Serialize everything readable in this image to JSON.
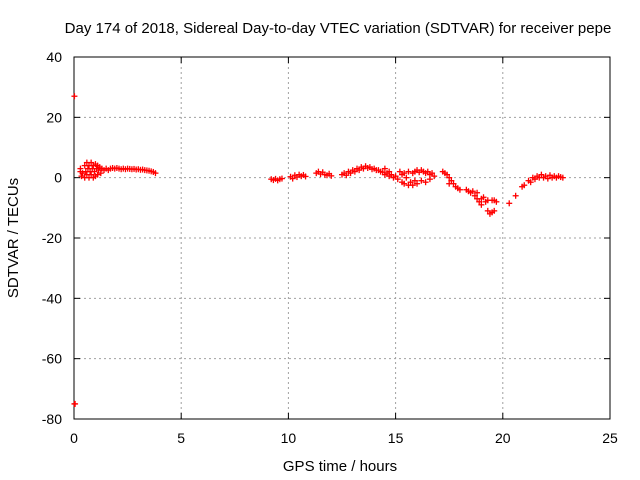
{
  "chart_data": {
    "type": "scatter",
    "title": "Day 174 of 2018, Sidereal Day-to-day VTEC variation (SDTVAR) for receiver pepe",
    "xlabel": "GPS time / hours",
    "ylabel": "SDTVAR / TECUs",
    "xlim": [
      0,
      25
    ],
    "ylim": [
      -80,
      40
    ],
    "xticks": [
      0,
      5,
      10,
      15,
      20,
      25
    ],
    "yticks": [
      -80,
      -60,
      -40,
      -20,
      0,
      20,
      40
    ],
    "grid": true,
    "marker_color": "#ff0000",
    "series": [
      {
        "name": "SDTVAR",
        "points": [
          [
            0.02,
            27
          ],
          [
            0.02,
            -75
          ],
          [
            0.05,
            -75
          ],
          [
            0.3,
            2
          ],
          [
            0.3,
            3
          ],
          [
            0.35,
            0.5
          ],
          [
            0.4,
            1.5
          ],
          [
            0.5,
            0
          ],
          [
            0.5,
            4
          ],
          [
            0.55,
            2
          ],
          [
            0.6,
            5
          ],
          [
            0.6,
            1
          ],
          [
            0.65,
            3
          ],
          [
            0.7,
            0
          ],
          [
            0.7,
            4
          ],
          [
            0.75,
            2
          ],
          [
            0.8,
            5
          ],
          [
            0.8,
            1
          ],
          [
            0.85,
            3
          ],
          [
            0.9,
            0
          ],
          [
            0.9,
            4
          ],
          [
            0.95,
            2
          ],
          [
            1.0,
            4.5
          ],
          [
            1.0,
            0.5
          ],
          [
            1.05,
            3
          ],
          [
            1.1,
            1
          ],
          [
            1.1,
            4
          ],
          [
            1.15,
            2.5
          ],
          [
            1.2,
            3.5
          ],
          [
            1.25,
            1.5
          ],
          [
            1.3,
            3
          ],
          [
            1.4,
            2.5
          ],
          [
            1.5,
            3
          ],
          [
            1.6,
            2.5
          ],
          [
            1.7,
            3
          ],
          [
            1.8,
            3.2
          ],
          [
            1.9,
            3
          ],
          [
            2.0,
            3.2
          ],
          [
            2.1,
            3
          ],
          [
            2.2,
            2.8
          ],
          [
            2.3,
            3
          ],
          [
            2.4,
            2.8
          ],
          [
            2.5,
            3
          ],
          [
            2.6,
            2.9
          ],
          [
            2.7,
            2.8
          ],
          [
            2.8,
            2.9
          ],
          [
            2.9,
            2.7
          ],
          [
            3.0,
            2.8
          ],
          [
            3.1,
            2.6
          ],
          [
            3.2,
            2.7
          ],
          [
            3.3,
            2.5
          ],
          [
            3.4,
            2.4
          ],
          [
            3.5,
            2.3
          ],
          [
            3.6,
            2.1
          ],
          [
            3.7,
            1.9
          ],
          [
            3.8,
            1.5
          ],
          [
            9.2,
            -0.5
          ],
          [
            9.3,
            -0.8
          ],
          [
            9.4,
            -0.4
          ],
          [
            9.5,
            -0.9
          ],
          [
            9.6,
            -0.5
          ],
          [
            9.7,
            -0.3
          ],
          [
            10.1,
            0.3
          ],
          [
            10.2,
            -0.3
          ],
          [
            10.3,
            0.8
          ],
          [
            10.4,
            0.2
          ],
          [
            10.5,
            1
          ],
          [
            10.6,
            0.5
          ],
          [
            10.7,
            0.9
          ],
          [
            10.8,
            0.4
          ],
          [
            11.3,
            1.5
          ],
          [
            11.4,
            2
          ],
          [
            11.5,
            1.2
          ],
          [
            11.6,
            1.8
          ],
          [
            11.7,
            1
          ],
          [
            11.8,
            0.8
          ],
          [
            11.9,
            1.3
          ],
          [
            12.0,
            0.6
          ],
          [
            12.5,
            1
          ],
          [
            12.6,
            1.5
          ],
          [
            12.7,
            0.8
          ],
          [
            12.8,
            2
          ],
          [
            12.9,
            1.5
          ],
          [
            13.0,
            2.5
          ],
          [
            13.1,
            2
          ],
          [
            13.2,
            3
          ],
          [
            13.3,
            2.5
          ],
          [
            13.4,
            3.5
          ],
          [
            13.5,
            3
          ],
          [
            13.6,
            3.8
          ],
          [
            13.7,
            3.2
          ],
          [
            13.8,
            3.5
          ],
          [
            13.9,
            2.8
          ],
          [
            14.0,
            3
          ],
          [
            14.1,
            2.5
          ],
          [
            14.2,
            2.5
          ],
          [
            14.3,
            2
          ],
          [
            14.4,
            1.8
          ],
          [
            14.5,
            3
          ],
          [
            14.5,
            1
          ],
          [
            14.6,
            1.5
          ],
          [
            14.7,
            2
          ],
          [
            14.7,
            0.5
          ],
          [
            14.8,
            1
          ],
          [
            14.9,
            0
          ],
          [
            15.0,
            0.5
          ],
          [
            15.1,
            -0.5
          ],
          [
            15.2,
            2
          ],
          [
            15.3,
            1
          ],
          [
            15.3,
            -1.5
          ],
          [
            15.4,
            1.5
          ],
          [
            15.4,
            -2
          ],
          [
            15.5,
            0
          ],
          [
            15.6,
            -2.5
          ],
          [
            15.6,
            2
          ],
          [
            15.7,
            -1.5
          ],
          [
            15.8,
            1.5
          ],
          [
            15.8,
            -2.5
          ],
          [
            15.9,
            2
          ],
          [
            15.9,
            -1
          ],
          [
            16.0,
            2.5
          ],
          [
            16.0,
            -2
          ],
          [
            16.1,
            1.8
          ],
          [
            16.2,
            2.5
          ],
          [
            16.2,
            -1
          ],
          [
            16.3,
            2
          ],
          [
            16.4,
            1.5
          ],
          [
            16.4,
            -1.5
          ],
          [
            16.5,
            2
          ],
          [
            16.6,
            1
          ],
          [
            16.6,
            -0.5
          ],
          [
            16.7,
            1.5
          ],
          [
            16.8,
            0.5
          ],
          [
            17.2,
            2
          ],
          [
            17.3,
            1.5
          ],
          [
            17.4,
            1
          ],
          [
            17.5,
            0
          ],
          [
            17.5,
            -2
          ],
          [
            17.6,
            -1
          ],
          [
            17.7,
            -2
          ],
          [
            17.8,
            -3
          ],
          [
            17.9,
            -3.5
          ],
          [
            18.0,
            -4
          ],
          [
            18.3,
            -4
          ],
          [
            18.4,
            -4.5
          ],
          [
            18.5,
            -5
          ],
          [
            18.6,
            -4.5
          ],
          [
            18.7,
            -6
          ],
          [
            18.8,
            -7
          ],
          [
            18.8,
            -5
          ],
          [
            18.9,
            -8
          ],
          [
            19.0,
            -7
          ],
          [
            19.0,
            -9
          ],
          [
            19.1,
            -6.5
          ],
          [
            19.2,
            -8
          ],
          [
            19.3,
            -7.5
          ],
          [
            19.3,
            -11
          ],
          [
            19.4,
            -12
          ],
          [
            19.5,
            -11.5
          ],
          [
            19.5,
            -7.5
          ],
          [
            19.6,
            -11
          ],
          [
            19.6,
            -7.5
          ],
          [
            19.7,
            -8
          ],
          [
            20.3,
            -8.5
          ],
          [
            20.6,
            -6
          ],
          [
            20.9,
            -3
          ],
          [
            21.0,
            -2.5
          ],
          [
            21.2,
            -1
          ],
          [
            21.3,
            -1.5
          ],
          [
            21.4,
            0
          ],
          [
            21.5,
            -0.5
          ],
          [
            21.6,
            0.5
          ],
          [
            21.7,
            0
          ],
          [
            21.8,
            1
          ],
          [
            21.9,
            0
          ],
          [
            22.0,
            0.5
          ],
          [
            22.1,
            -0.3
          ],
          [
            22.2,
            0.8
          ],
          [
            22.3,
            0
          ],
          [
            22.4,
            0.5
          ],
          [
            22.5,
            0
          ],
          [
            22.6,
            0.5
          ],
          [
            22.7,
            0.2
          ],
          [
            22.8,
            0
          ]
        ]
      }
    ]
  }
}
